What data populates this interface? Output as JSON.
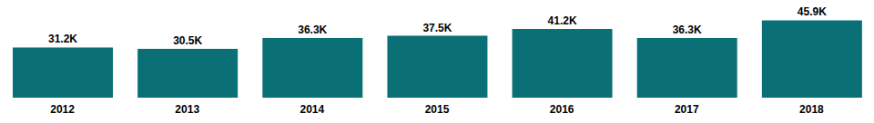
{
  "chart_data": {
    "type": "bar",
    "categories": [
      "2012",
      "2013",
      "2014",
      "2015",
      "2016",
      "2017",
      "2018"
    ],
    "values": [
      31.2,
      30.5,
      36.3,
      37.5,
      41.2,
      36.3,
      45.9
    ],
    "value_labels": [
      "31.2K",
      "30.5K",
      "36.3K",
      "37.5K",
      "41.2K",
      "36.3K",
      "45.9K"
    ],
    "color": "#0b7075",
    "ylim": [
      4,
      52
    ],
    "data_labels": true,
    "tick_labels": "x",
    "grid": false
  }
}
